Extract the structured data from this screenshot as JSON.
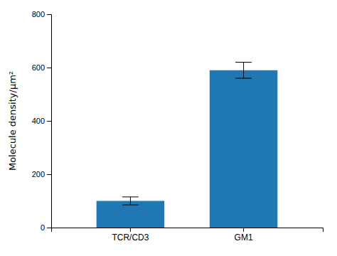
{
  "chart_data": {
    "type": "bar",
    "categories": [
      "TCR/CD3",
      "GM1"
    ],
    "values": [
      100,
      590
    ],
    "errors": [
      15,
      30
    ],
    "ylabel": "Molecule density/μm²",
    "ylim": [
      0,
      800
    ],
    "yticks": [
      0,
      200,
      400,
      600,
      800
    ],
    "grid": false
  }
}
